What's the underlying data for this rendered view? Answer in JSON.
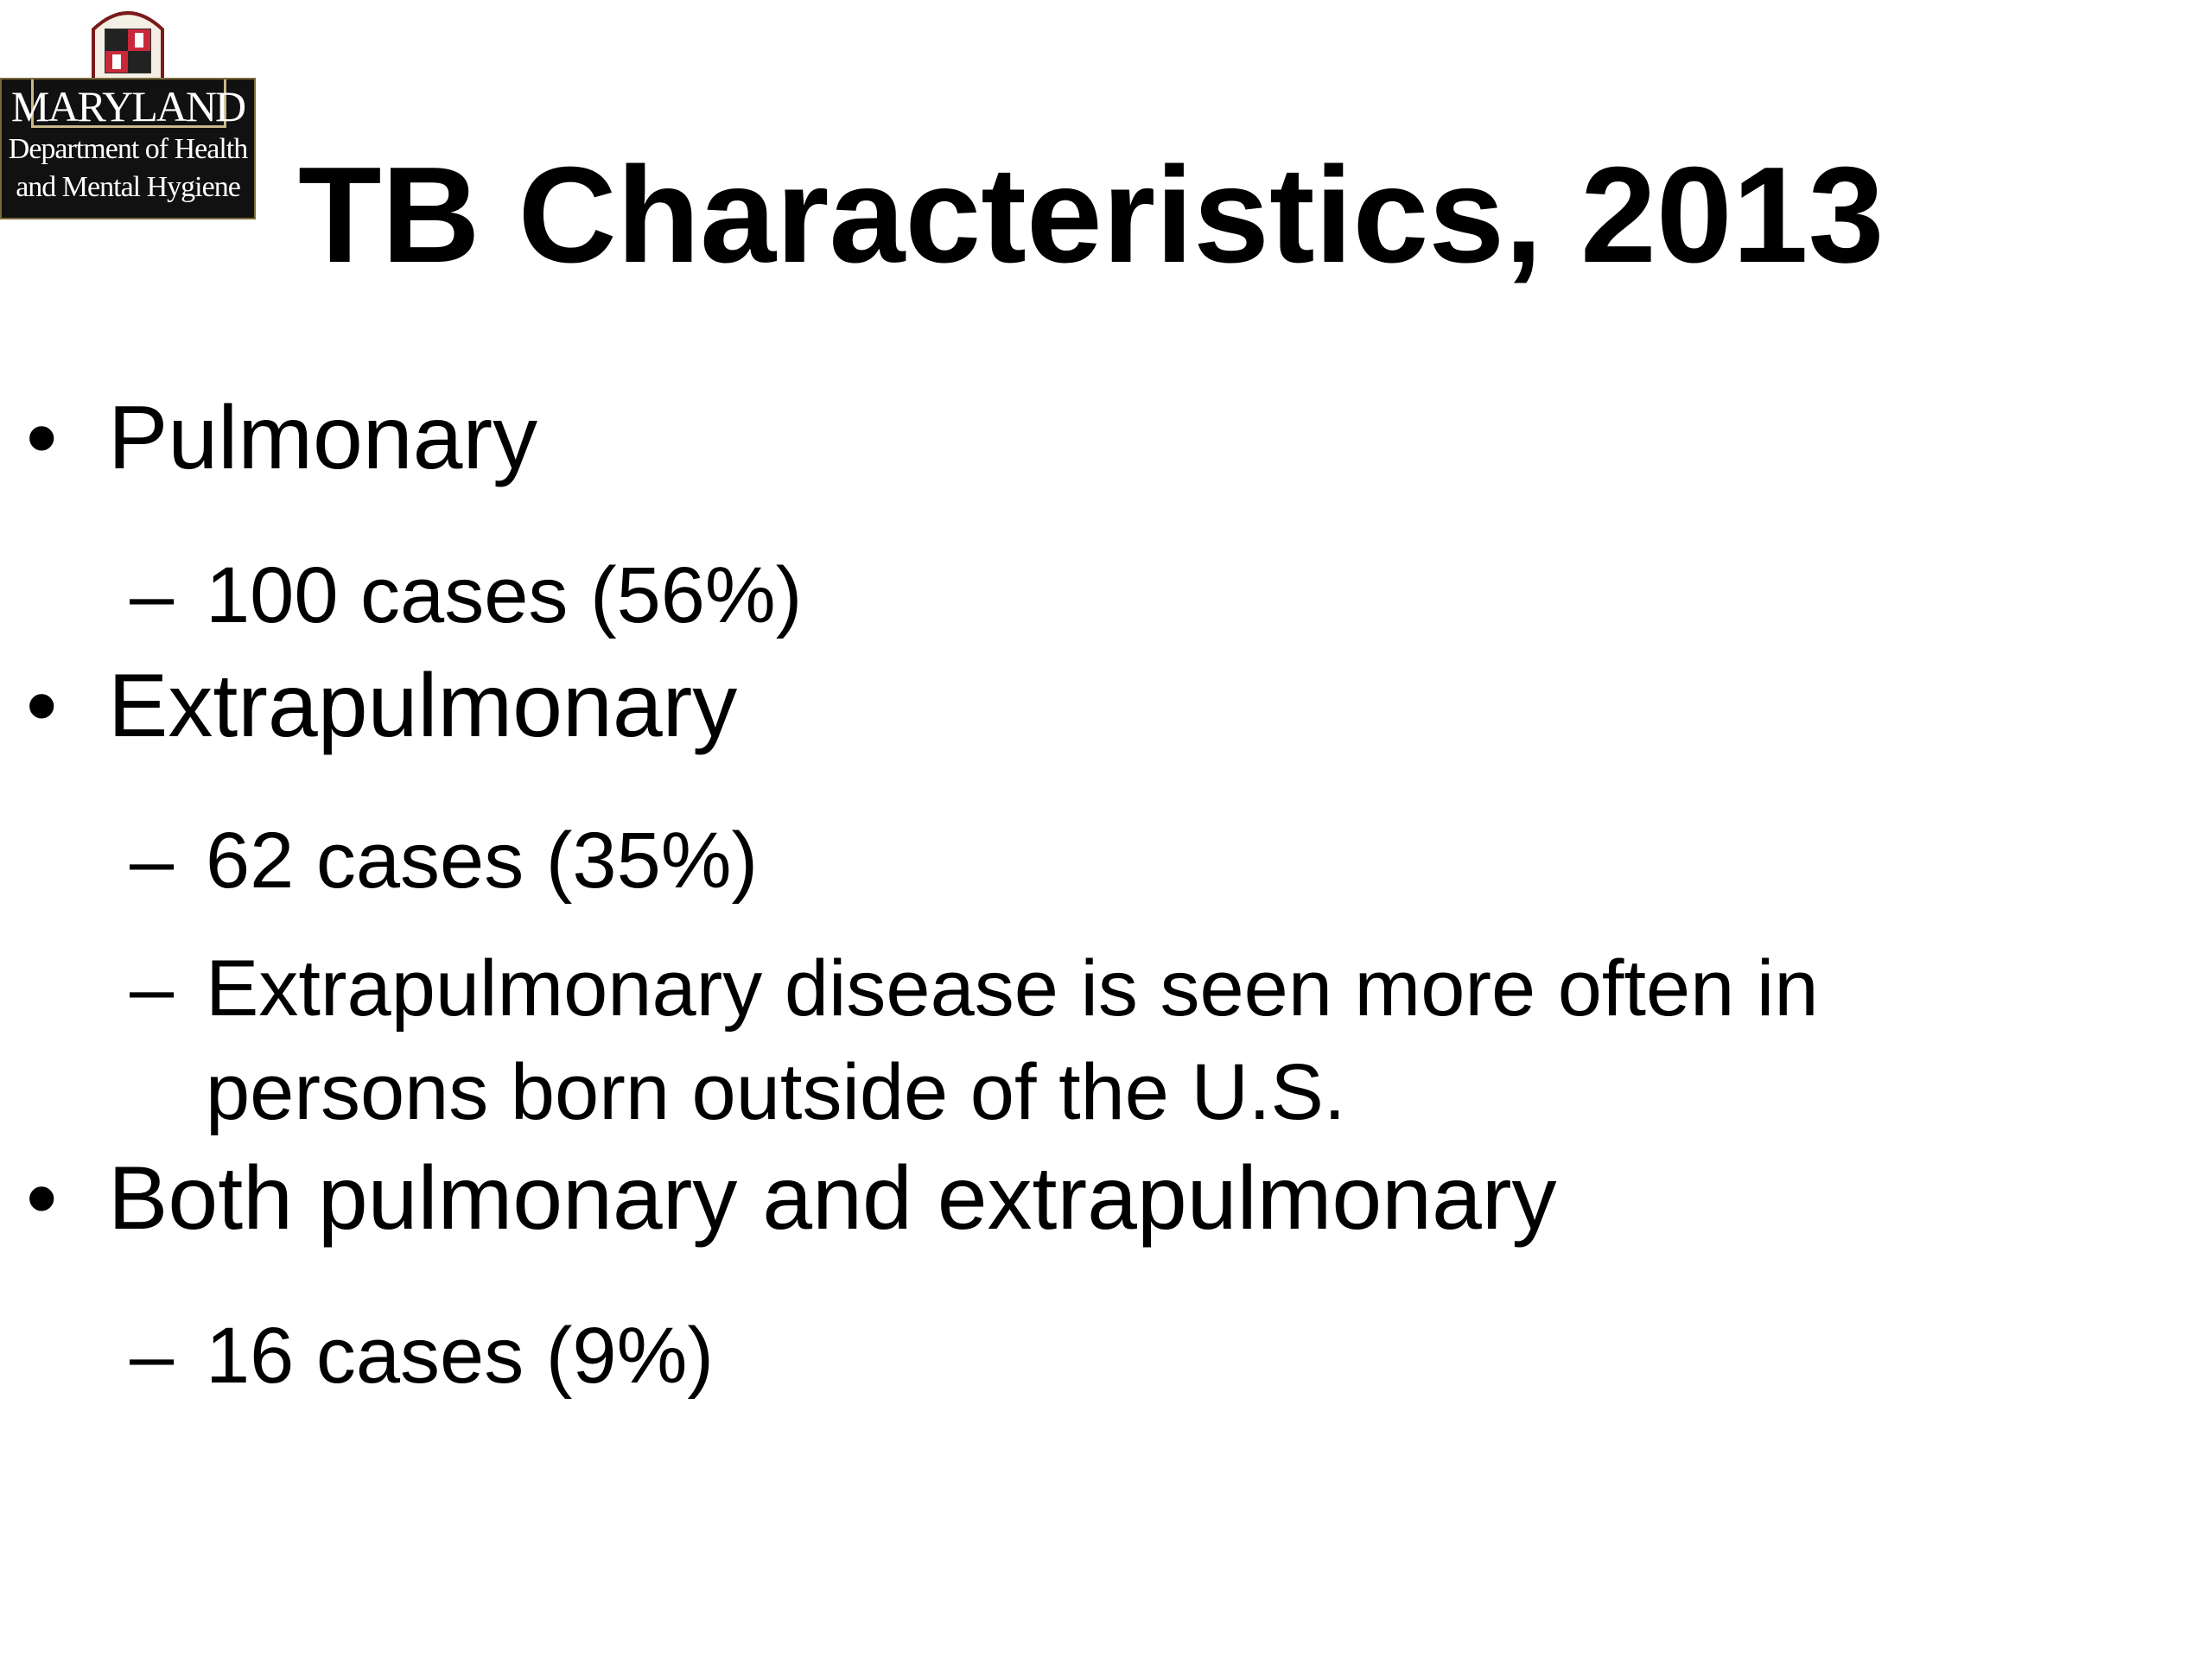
{
  "logo": {
    "name": "MARYLAND",
    "line1": "Department of Health",
    "line2": "and Mental Hygiene"
  },
  "title": "TB Characteristics, 2013",
  "bullets": [
    {
      "text": "Pulmonary",
      "subitems": [
        "100 cases (56%)"
      ]
    },
    {
      "text": "Extrapulmonary",
      "subitems": [
        "62 cases (35%)",
        "Extrapulmonary disease is seen more often in persons born outside of the U.S."
      ]
    },
    {
      "text": "Both pulmonary and extrapulmonary",
      "subitems": [
        "16 cases (9%)"
      ]
    }
  ]
}
